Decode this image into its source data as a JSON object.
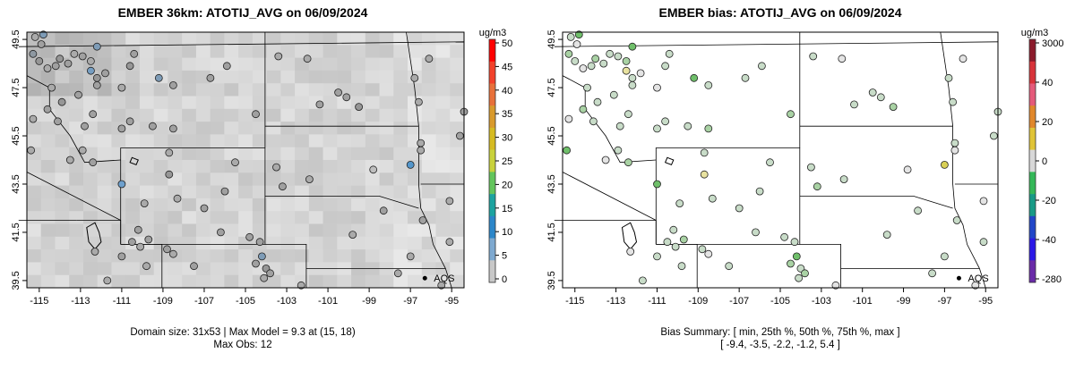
{
  "left_panel": {
    "title": "EMBER 36km: ATOTIJ_AVG on 06/09/2024",
    "colorbar_unit": "ug/m3",
    "colorbar_ticks": [
      "50",
      "45",
      "40",
      "35",
      "30",
      "25",
      "20",
      "15",
      "10",
      "5",
      "0"
    ],
    "colorbar_colors": [
      "#ff0000",
      "#f2412a",
      "#e8703a",
      "#d99a2c",
      "#d6bb22",
      "#c9d23c",
      "#63c55c",
      "#1ca3a0",
      "#2b86c9",
      "#7ea9d0",
      "#c8c8c8"
    ],
    "footer_line1": "Domain size: 31x53 | Max Model = 9.3 at (15, 18)",
    "footer_line2": "Max Obs: 12",
    "marker_label": "AQS"
  },
  "right_panel": {
    "title": "EMBER bias: ATOTIJ_AVG on 06/09/2024",
    "colorbar_unit": "ug/m3",
    "colorbar_ticks": [
      "3000",
      "40",
      "20",
      "0",
      "-20",
      "-40",
      "-280"
    ],
    "colorbar_colors": [
      "#8b1a2b",
      "#d8333a",
      "#e45a7a",
      "#e0872b",
      "#e0c437",
      "#d8d8d8",
      "#34b858",
      "#179a86",
      "#2146c8",
      "#2b18e6",
      "#6a2aa8"
    ],
    "footer_line1": "Bias Summary: [ min, 25th %, 50th %, 75th %, max ]",
    "footer_line2": "[ -9.4,  -3.5,  -2.2,  -1.2,  5.4 ]",
    "marker_label": "AQS"
  },
  "axes": {
    "x_ticks": [
      "-115",
      "-113",
      "-111",
      "-109",
      "-107",
      "-105",
      "-103",
      "-101",
      "-99",
      "-97",
      "-95"
    ],
    "x_values": [
      -115,
      -113,
      -111,
      -109,
      -107,
      -105,
      -103,
      -101,
      -99,
      -97,
      -95
    ],
    "y_ticks": [
      "49.5",
      "47.5",
      "45.5",
      "43.5",
      "41.5",
      "39.5"
    ],
    "y_values": [
      49.5,
      47.5,
      45.5,
      43.5,
      41.5,
      39.5
    ],
    "lon_range": [
      -115.6,
      -94.4
    ],
    "lat_range": [
      39.2,
      49.8
    ]
  },
  "map_data": {
    "aqs_marker": {
      "lon": -96.3,
      "lat": 39.6
    },
    "stations": [
      {
        "lon": -115.2,
        "lat": 49.6,
        "v": 3,
        "b": -2
      },
      {
        "lon": -114.8,
        "lat": 49.7,
        "v": 8,
        "b": -4
      },
      {
        "lon": -114.9,
        "lat": 49.3,
        "v": 4,
        "b": -1
      },
      {
        "lon": -115.3,
        "lat": 48.9,
        "v": 6,
        "b": -3
      },
      {
        "lon": -115.0,
        "lat": 48.6,
        "v": 5,
        "b": -2
      },
      {
        "lon": -114.6,
        "lat": 48.3,
        "v": 3,
        "b": -1
      },
      {
        "lon": -114.2,
        "lat": 48.4,
        "v": 4,
        "b": -2
      },
      {
        "lon": -114.0,
        "lat": 48.7,
        "v": 5,
        "b": -3
      },
      {
        "lon": -113.6,
        "lat": 48.5,
        "v": 4,
        "b": -2
      },
      {
        "lon": -113.3,
        "lat": 48.9,
        "v": 3,
        "b": -2
      },
      {
        "lon": -112.9,
        "lat": 48.8,
        "v": 4,
        "b": -2
      },
      {
        "lon": -112.5,
        "lat": 48.6,
        "v": 3,
        "b": -3
      },
      {
        "lon": -112.2,
        "lat": 49.2,
        "v": 8,
        "b": -4
      },
      {
        "lon": -112.5,
        "lat": 48.2,
        "v": 9,
        "b": 2
      },
      {
        "lon": -112.2,
        "lat": 47.9,
        "v": 5,
        "b": -2
      },
      {
        "lon": -111.8,
        "lat": 48.1,
        "v": 4,
        "b": -1
      },
      {
        "lon": -112.2,
        "lat": 47.6,
        "v": 4,
        "b": -2
      },
      {
        "lon": -113.1,
        "lat": 47.2,
        "v": 4,
        "b": -2
      },
      {
        "lon": -114.4,
        "lat": 47.5,
        "v": 3,
        "b": -2
      },
      {
        "lon": -114.6,
        "lat": 46.6,
        "v": 4,
        "b": -3
      },
      {
        "lon": -113.9,
        "lat": 46.9,
        "v": 5,
        "b": -2
      },
      {
        "lon": -114.1,
        "lat": 46.1,
        "v": 4,
        "b": -2
      },
      {
        "lon": -115.3,
        "lat": 46.2,
        "v": 3,
        "b": -1
      },
      {
        "lon": -115.4,
        "lat": 44.9,
        "v": 3,
        "b": -4
      },
      {
        "lon": -112.4,
        "lat": 46.4,
        "v": 4,
        "b": -2
      },
      {
        "lon": -112.8,
        "lat": 45.9,
        "v": 4,
        "b": -2
      },
      {
        "lon": -111.0,
        "lat": 45.8,
        "v": 4,
        "b": -2
      },
      {
        "lon": -110.6,
        "lat": 46.1,
        "v": 4,
        "b": -2
      },
      {
        "lon": -111.0,
        "lat": 47.5,
        "v": 3,
        "b": -1
      },
      {
        "lon": -110.6,
        "lat": 48.4,
        "v": 5,
        "b": -2
      },
      {
        "lon": -110.4,
        "lat": 48.9,
        "v": 4,
        "b": -2
      },
      {
        "lon": -109.2,
        "lat": 47.9,
        "v": 8,
        "b": -4
      },
      {
        "lon": -109.5,
        "lat": 45.9,
        "v": 4,
        "b": -2
      },
      {
        "lon": -108.5,
        "lat": 47.6,
        "v": 4,
        "b": -2
      },
      {
        "lon": -108.5,
        "lat": 45.8,
        "v": 4,
        "b": -3
      },
      {
        "lon": -108.7,
        "lat": 44.8,
        "v": 3,
        "b": -2
      },
      {
        "lon": -108.7,
        "lat": 43.9,
        "v": 5,
        "b": 3
      },
      {
        "lon": -106.7,
        "lat": 47.9,
        "v": 4,
        "b": -2
      },
      {
        "lon": -105.9,
        "lat": 48.4,
        "v": 4,
        "b": -2
      },
      {
        "lon": -104.5,
        "lat": 46.4,
        "v": 4,
        "b": -3
      },
      {
        "lon": -103.4,
        "lat": 48.8,
        "v": 3,
        "b": -2
      },
      {
        "lon": -102.0,
        "lat": 48.7,
        "v": 3,
        "b": -1
      },
      {
        "lon": -101.4,
        "lat": 46.8,
        "v": 4,
        "b": -2
      },
      {
        "lon": -100.5,
        "lat": 47.3,
        "v": 4,
        "b": -2
      },
      {
        "lon": -100.1,
        "lat": 47.1,
        "v": 4,
        "b": -2
      },
      {
        "lon": -99.5,
        "lat": 46.7,
        "v": 5,
        "b": -3
      },
      {
        "lon": -96.8,
        "lat": 47.9,
        "v": 3,
        "b": -2
      },
      {
        "lon": -96.6,
        "lat": 46.9,
        "v": 3,
        "b": -2
      },
      {
        "lon": -96.1,
        "lat": 48.7,
        "v": 3,
        "b": -1
      },
      {
        "lon": -94.4,
        "lat": 46.5,
        "v": 4,
        "b": -2
      },
      {
        "lon": -94.6,
        "lat": 45.5,
        "v": 4,
        "b": -2
      },
      {
        "lon": -96.5,
        "lat": 45.2,
        "v": 3,
        "b": -2
      },
      {
        "lon": -97.0,
        "lat": 44.3,
        "v": 12,
        "b": 4
      },
      {
        "lon": -98.8,
        "lat": 44.1,
        "v": 1,
        "b": -1
      },
      {
        "lon": -101.9,
        "lat": 43.7,
        "v": 3,
        "b": -2
      },
      {
        "lon": -103.5,
        "lat": 44.2,
        "v": 3,
        "b": -2
      },
      {
        "lon": -103.2,
        "lat": 43.4,
        "v": 4,
        "b": -3
      },
      {
        "lon": -105.5,
        "lat": 44.4,
        "v": 3,
        "b": -2
      },
      {
        "lon": -106.0,
        "lat": 43.2,
        "v": 4,
        "b": -2
      },
      {
        "lon": -107.0,
        "lat": 42.5,
        "v": 4,
        "b": -2
      },
      {
        "lon": -108.3,
        "lat": 42.9,
        "v": 3,
        "b": -2
      },
      {
        "lon": -109.9,
        "lat": 42.7,
        "v": 3,
        "b": -2
      },
      {
        "lon": -111.0,
        "lat": 43.5,
        "v": 10,
        "b": -4
      },
      {
        "lon": -112.4,
        "lat": 44.4,
        "v": 4,
        "b": -3
      },
      {
        "lon": -112.9,
        "lat": 44.9,
        "v": 3,
        "b": -2
      },
      {
        "lon": -113.5,
        "lat": 44.5,
        "v": 3,
        "b": -1
      },
      {
        "lon": -110.2,
        "lat": 41.6,
        "v": 4,
        "b": -2
      },
      {
        "lon": -110.5,
        "lat": 41.1,
        "v": 4,
        "b": -2
      },
      {
        "lon": -110.1,
        "lat": 40.9,
        "v": 3,
        "b": -2
      },
      {
        "lon": -109.7,
        "lat": 41.2,
        "v": 4,
        "b": -3
      },
      {
        "lon": -108.8,
        "lat": 40.8,
        "v": 4,
        "b": -2
      },
      {
        "lon": -108.5,
        "lat": 40.6,
        "v": 3,
        "b": -1
      },
      {
        "lon": -109.8,
        "lat": 40.1,
        "v": 3,
        "b": -2
      },
      {
        "lon": -111.0,
        "lat": 40.5,
        "v": 4,
        "b": -2
      },
      {
        "lon": -112.3,
        "lat": 40.7,
        "v": 3,
        "b": -1
      },
      {
        "lon": -111.7,
        "lat": 39.5,
        "v": 3,
        "b": -2
      },
      {
        "lon": -107.5,
        "lat": 40.1,
        "v": 4,
        "b": -2
      },
      {
        "lon": -106.2,
        "lat": 41.5,
        "v": 4,
        "b": -2
      },
      {
        "lon": -104.8,
        "lat": 41.3,
        "v": 4,
        "b": -2
      },
      {
        "lon": -104.3,
        "lat": 41.1,
        "v": 4,
        "b": -2
      },
      {
        "lon": -104.2,
        "lat": 40.5,
        "v": 8,
        "b": -4
      },
      {
        "lon": -104.5,
        "lat": 40.2,
        "v": 4,
        "b": -3
      },
      {
        "lon": -104.0,
        "lat": 40.0,
        "v": 5,
        "b": -2
      },
      {
        "lon": -103.8,
        "lat": 39.8,
        "v": 4,
        "b": -3
      },
      {
        "lon": -104.1,
        "lat": 39.6,
        "v": 3,
        "b": -2
      },
      {
        "lon": -102.3,
        "lat": 39.3,
        "v": 3,
        "b": -1
      },
      {
        "lon": -99.8,
        "lat": 41.4,
        "v": 3,
        "b": -2
      },
      {
        "lon": -98.3,
        "lat": 42.4,
        "v": 4,
        "b": -2
      },
      {
        "lon": -96.4,
        "lat": 42.0,
        "v": 4,
        "b": -2
      },
      {
        "lon": -95.1,
        "lat": 42.8,
        "v": 3,
        "b": -1
      },
      {
        "lon": -95.1,
        "lat": 41.1,
        "v": 3,
        "b": -2
      },
      {
        "lon": -97.0,
        "lat": 40.5,
        "v": 3,
        "b": -2
      },
      {
        "lon": -97.6,
        "lat": 39.8,
        "v": 3,
        "b": -2
      },
      {
        "lon": -95.5,
        "lat": 39.3,
        "v": 3,
        "b": -1
      },
      {
        "lon": -96.5,
        "lat": 44.9,
        "v": 3,
        "b": -1
      }
    ]
  }
}
